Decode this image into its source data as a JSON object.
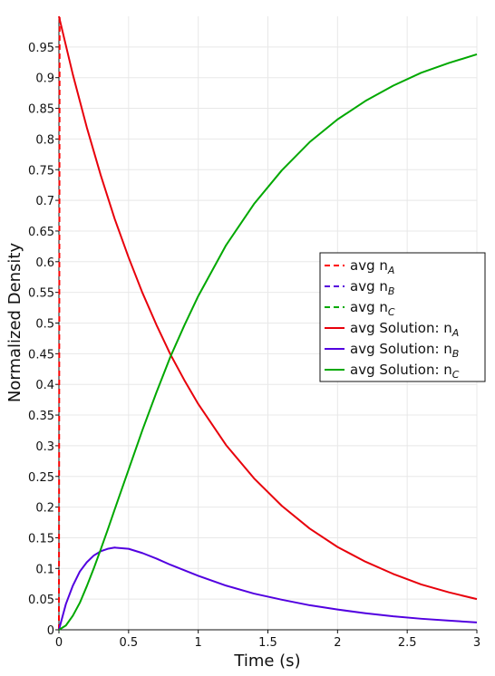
{
  "chart_data": {
    "type": "line",
    "xlabel": "Time (s)",
    "ylabel": "Normalized Density",
    "xlim": [
      0,
      3
    ],
    "ylim": [
      0,
      1
    ],
    "xticks": [
      "0",
      "0.5",
      "1",
      "1.5",
      "2",
      "2.5",
      "3"
    ],
    "yticks": [
      "0",
      "0.05",
      "0.1",
      "0.15",
      "0.2",
      "0.25",
      "0.3",
      "0.35",
      "0.4",
      "0.45",
      "0.5",
      "0.55",
      "0.6",
      "0.65",
      "0.7",
      "0.75",
      "0.8",
      "0.85",
      "0.9",
      "0.95"
    ],
    "grid": true,
    "legend_position": "right",
    "series": [
      {
        "name": "avg n",
        "subscript": "A",
        "style": "dashed",
        "color": "#ff0000",
        "x": [
          0,
          0.005
        ],
        "y": [
          0,
          1.0
        ]
      },
      {
        "name": "avg n",
        "subscript": "B",
        "style": "dashed",
        "color": "#5500dd",
        "x": [
          0
        ],
        "y": [
          0
        ]
      },
      {
        "name": "avg n",
        "subscript": "C",
        "style": "dashed",
        "color": "#00aa00",
        "x": [
          0
        ],
        "y": [
          0
        ]
      },
      {
        "name": "avg Solution: n",
        "subscript": "A",
        "style": "solid",
        "color": "#e8000b",
        "x": [
          0,
          0.1,
          0.2,
          0.3,
          0.4,
          0.5,
          0.6,
          0.7,
          0.8,
          0.9,
          1.0,
          1.2,
          1.4,
          1.6,
          1.8,
          2.0,
          2.2,
          2.4,
          2.6,
          2.8,
          3.0
        ],
        "y": [
          1.0,
          0.905,
          0.819,
          0.741,
          0.67,
          0.607,
          0.549,
          0.497,
          0.449,
          0.407,
          0.368,
          0.301,
          0.247,
          0.202,
          0.165,
          0.135,
          0.111,
          0.091,
          0.074,
          0.061,
          0.05
        ]
      },
      {
        "name": "avg Solution: n",
        "subscript": "B",
        "style": "solid",
        "color": "#5200e0",
        "x": [
          0,
          0.05,
          0.1,
          0.15,
          0.2,
          0.25,
          0.3,
          0.35,
          0.4,
          0.5,
          0.6,
          0.7,
          0.8,
          0.9,
          1.0,
          1.2,
          1.4,
          1.6,
          1.8,
          2.0,
          2.2,
          2.4,
          2.6,
          2.8,
          3.0
        ],
        "y": [
          0,
          0.042,
          0.072,
          0.095,
          0.11,
          0.121,
          0.128,
          0.132,
          0.134,
          0.132,
          0.125,
          0.116,
          0.106,
          0.097,
          0.088,
          0.072,
          0.059,
          0.049,
          0.04,
          0.033,
          0.027,
          0.022,
          0.018,
          0.015,
          0.012
        ]
      },
      {
        "name": "avg Solution: n",
        "subscript": "C",
        "style": "solid",
        "color": "#00a800",
        "x": [
          0,
          0.05,
          0.1,
          0.15,
          0.2,
          0.25,
          0.3,
          0.35,
          0.4,
          0.5,
          0.6,
          0.7,
          0.8,
          0.9,
          1.0,
          1.2,
          1.4,
          1.6,
          1.8,
          2.0,
          2.2,
          2.4,
          2.6,
          2.8,
          3.0
        ],
        "y": [
          0,
          0.007,
          0.023,
          0.044,
          0.071,
          0.1,
          0.131,
          0.163,
          0.196,
          0.261,
          0.326,
          0.387,
          0.445,
          0.496,
          0.544,
          0.627,
          0.694,
          0.749,
          0.795,
          0.832,
          0.862,
          0.887,
          0.908,
          0.924,
          0.938
        ]
      }
    ]
  }
}
